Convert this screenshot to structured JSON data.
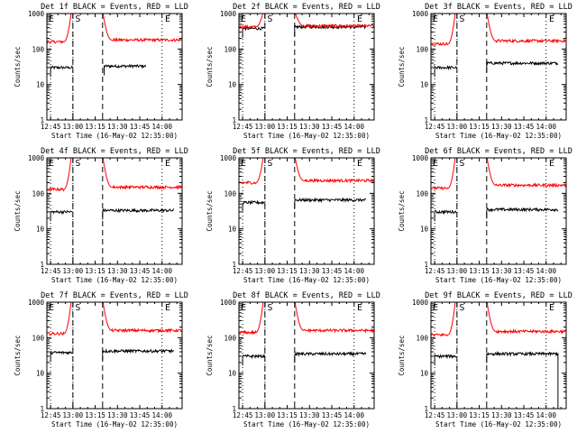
{
  "figure": {
    "xlabel": "Start Time (16-May-02 12:35:00)",
    "ylabel": "Counts/sec",
    "colors": {
      "events": "#000000",
      "lld": "#ff0000",
      "axes": "#000000"
    }
  },
  "chart_data": [
    {
      "type": "line",
      "title": "Det 1f BLACK = Events, RED = LLD",
      "xlabel": "Start Time (16-May-02 12:35:00)",
      "ylabel": "Counts/sec",
      "yscale": "log",
      "ylim": [
        1,
        1000
      ],
      "xlim_minutes": [
        12.5,
        103.5
      ],
      "x_tick_labels": [
        "12:45",
        "13:00",
        "13:15",
        "13:30",
        "13:45",
        "14:00"
      ],
      "y_tick_labels": [
        "1",
        "10",
        "100",
        "1000"
      ],
      "markers": [
        "E",
        "S",
        "E"
      ],
      "series": [
        {
          "name": "Events",
          "color": "#000000",
          "segments": [
            {
              "x_range": [
                15,
                30
              ],
              "level": 30
            },
            {
              "x_range": [
                51,
                79
              ],
              "level": 33
            }
          ]
        },
        {
          "name": "LLD",
          "color": "#ff0000",
          "segments": [
            {
              "x_range": [
                12.5,
                29
              ],
              "level": 160,
              "rise_to": 1200
            },
            {
              "x_range": [
                50,
                103.5
              ],
              "level": 180,
              "peak": 1200
            }
          ]
        }
      ]
    },
    {
      "type": "line",
      "title": "Det 2f BLACK = Events, RED = LLD",
      "xlabel": "Start Time (16-May-02 12:35:00)",
      "ylabel": "Counts/sec",
      "yscale": "log",
      "ylim": [
        1,
        1000
      ],
      "xlim_minutes": [
        12.5,
        103.5
      ],
      "x_tick_labels": [
        "12:45",
        "13:00",
        "13:15",
        "13:30",
        "13:45",
        "14:00"
      ],
      "y_tick_labels": [
        "1",
        "10",
        "100",
        "1000"
      ],
      "markers": [
        "E",
        "S",
        "E"
      ],
      "series": [
        {
          "name": "Events",
          "color": "#000000",
          "segments": [
            {
              "x_range": [
                15,
                30
              ],
              "level": 380
            },
            {
              "x_range": [
                50,
                98
              ],
              "level": 420
            }
          ]
        },
        {
          "name": "LLD",
          "color": "#ff0000",
          "segments": [
            {
              "x_range": [
                12.5,
                29
              ],
              "level": 420,
              "rise_to": 1200
            },
            {
              "x_range": [
                50,
                103.5
              ],
              "level": 450,
              "peak": 1200
            }
          ]
        }
      ]
    },
    {
      "type": "line",
      "title": "Det 3f BLACK = Events, RED = LLD",
      "xlabel": "Start Time (16-May-02 12:35:00)",
      "ylabel": "Counts/sec",
      "yscale": "log",
      "ylim": [
        1,
        1000
      ],
      "xlim_minutes": [
        12.5,
        103.5
      ],
      "x_tick_labels": [
        "12:45",
        "13:00",
        "13:15",
        "13:30",
        "13:45",
        "14:00"
      ],
      "y_tick_labels": [
        "1",
        "10",
        "100",
        "1000"
      ],
      "markers": [
        "E",
        "S",
        "E"
      ],
      "series": [
        {
          "name": "Events",
          "color": "#000000",
          "segments": [
            {
              "x_range": [
                15,
                30
              ],
              "level": 30
            },
            {
              "x_range": [
                50,
                98
              ],
              "level": 40
            }
          ]
        },
        {
          "name": "LLD",
          "color": "#ff0000",
          "segments": [
            {
              "x_range": [
                12.5,
                29
              ],
              "level": 140,
              "rise_to": 1200
            },
            {
              "x_range": [
                50,
                103.5
              ],
              "level": 170,
              "peak": 1200
            }
          ]
        }
      ]
    },
    {
      "type": "line",
      "title": "Det 4f BLACK = Events, RED = LLD",
      "xlabel": "Start Time (16-May-02 12:35:00)",
      "ylabel": "Counts/sec",
      "yscale": "log",
      "ylim": [
        1,
        1000
      ],
      "xlim_minutes": [
        12.5,
        103.5
      ],
      "x_tick_labels": [
        "12:45",
        "13:00",
        "13:15",
        "13:30",
        "13:45",
        "14:00"
      ],
      "y_tick_labels": [
        "1",
        "10",
        "100",
        "1000"
      ],
      "markers": [
        "E",
        "S",
        "E"
      ],
      "series": [
        {
          "name": "Events",
          "color": "#000000",
          "segments": [
            {
              "x_range": [
                15,
                30
              ],
              "level": 30
            },
            {
              "x_range": [
                50,
                98
              ],
              "level": 33
            }
          ]
        },
        {
          "name": "LLD",
          "color": "#ff0000",
          "segments": [
            {
              "x_range": [
                12.5,
                29
              ],
              "level": 130,
              "rise_to": 1200
            },
            {
              "x_range": [
                50,
                103.5
              ],
              "level": 150,
              "peak": 1200
            }
          ]
        }
      ]
    },
    {
      "type": "line",
      "title": "Det 5f BLACK = Events, RED = LLD",
      "xlabel": "Start Time (16-May-02 12:35:00)",
      "ylabel": "Counts/sec",
      "yscale": "log",
      "ylim": [
        1,
        1000
      ],
      "xlim_minutes": [
        12.5,
        103.5
      ],
      "x_tick_labels": [
        "12:45",
        "13:00",
        "13:15",
        "13:30",
        "13:45",
        "14:00"
      ],
      "y_tick_labels": [
        "1",
        "10",
        "100",
        "1000"
      ],
      "markers": [
        "E",
        "S",
        "E"
      ],
      "series": [
        {
          "name": "Events",
          "color": "#000000",
          "segments": [
            {
              "x_range": [
                15,
                30
              ],
              "level": 55
            },
            {
              "x_range": [
                50,
                98
              ],
              "level": 65
            }
          ]
        },
        {
          "name": "LLD",
          "color": "#ff0000",
          "segments": [
            {
              "x_range": [
                12.5,
                29
              ],
              "level": 200,
              "rise_to": 1200
            },
            {
              "x_range": [
                50,
                103.5
              ],
              "level": 230,
              "peak": 1200
            }
          ]
        }
      ]
    },
    {
      "type": "line",
      "title": "Det 6f BLACK = Events, RED = LLD",
      "xlabel": "Start Time (16-May-02 12:35:00)",
      "ylabel": "Counts/sec",
      "yscale": "log",
      "ylim": [
        1,
        1000
      ],
      "xlim_minutes": [
        12.5,
        103.5
      ],
      "x_tick_labels": [
        "12:45",
        "13:00",
        "13:15",
        "13:30",
        "13:45",
        "14:00"
      ],
      "y_tick_labels": [
        "1",
        "10",
        "100",
        "1000"
      ],
      "markers": [
        "E",
        "S",
        "E"
      ],
      "series": [
        {
          "name": "Events",
          "color": "#000000",
          "segments": [
            {
              "x_range": [
                15,
                30
              ],
              "level": 30
            },
            {
              "x_range": [
                50,
                98
              ],
              "level": 35
            }
          ]
        },
        {
          "name": "LLD",
          "color": "#ff0000",
          "segments": [
            {
              "x_range": [
                12.5,
                29
              ],
              "level": 140,
              "rise_to": 1200
            },
            {
              "x_range": [
                50,
                103.5
              ],
              "level": 170,
              "peak": 1200
            }
          ]
        }
      ]
    },
    {
      "type": "line",
      "title": "Det 7f BLACK = Events, RED = LLD",
      "xlabel": "Start Time (16-May-02 12:35:00)",
      "ylabel": "Counts/sec",
      "yscale": "log",
      "ylim": [
        1,
        1000
      ],
      "xlim_minutes": [
        12.5,
        103.5
      ],
      "x_tick_labels": [
        "12:45",
        "13:00",
        "13:15",
        "13:30",
        "13:45",
        "14:00"
      ],
      "y_tick_labels": [
        "1",
        "10",
        "100",
        "1000"
      ],
      "markers": [
        "E",
        "S",
        "E"
      ],
      "series": [
        {
          "name": "Events",
          "color": "#000000",
          "segments": [
            {
              "x_range": [
                15,
                30
              ],
              "level": 38
            },
            {
              "x_range": [
                50,
                98
              ],
              "level": 42
            }
          ]
        },
        {
          "name": "LLD",
          "color": "#ff0000",
          "segments": [
            {
              "x_range": [
                12.5,
                29
              ],
              "level": 130,
              "rise_to": 1200
            },
            {
              "x_range": [
                50,
                103.5
              ],
              "level": 160,
              "peak": 1200
            }
          ]
        }
      ]
    },
    {
      "type": "line",
      "title": "Det 8f BLACK = Events, RED = LLD",
      "xlabel": "Start Time (16-May-02 12:35:00)",
      "ylabel": "Counts/sec",
      "yscale": "log",
      "ylim": [
        1,
        1000
      ],
      "xlim_minutes": [
        12.5,
        103.5
      ],
      "x_tick_labels": [
        "12:45",
        "13:00",
        "13:15",
        "13:30",
        "13:45",
        "14:00"
      ],
      "y_tick_labels": [
        "1",
        "10",
        "100",
        "1000"
      ],
      "markers": [
        "E",
        "S",
        "E"
      ],
      "series": [
        {
          "name": "Events",
          "color": "#000000",
          "segments": [
            {
              "x_range": [
                15,
                30
              ],
              "level": 30
            },
            {
              "x_range": [
                50,
                98
              ],
              "level": 35
            }
          ]
        },
        {
          "name": "LLD",
          "color": "#ff0000",
          "segments": [
            {
              "x_range": [
                12.5,
                29
              ],
              "level": 140,
              "rise_to": 1200
            },
            {
              "x_range": [
                50,
                103.5
              ],
              "level": 160,
              "peak": 1200
            }
          ]
        }
      ]
    },
    {
      "type": "line",
      "title": "Det 9f BLACK = Events, RED = LLD",
      "xlabel": "Start Time (16-May-02 12:35:00)",
      "ylabel": "Counts/sec",
      "yscale": "log",
      "ylim": [
        1,
        1000
      ],
      "xlim_minutes": [
        12.5,
        103.5
      ],
      "x_tick_labels": [
        "12:45",
        "13:00",
        "13:15",
        "13:30",
        "13:45",
        "14:00"
      ],
      "y_tick_labels": [
        "1",
        "10",
        "100",
        "1000"
      ],
      "markers": [
        "E",
        "S",
        "E"
      ],
      "series": [
        {
          "name": "Events",
          "color": "#000000",
          "segments": [
            {
              "x_range": [
                15,
                30
              ],
              "level": 30
            },
            {
              "x_range": [
                50,
                98
              ],
              "level": 35,
              "drop_at": 98
            }
          ]
        },
        {
          "name": "LLD",
          "color": "#ff0000",
          "segments": [
            {
              "x_range": [
                12.5,
                29
              ],
              "level": 120,
              "rise_to": 1200
            },
            {
              "x_range": [
                50,
                103.5
              ],
              "level": 150,
              "peak": 1200
            }
          ]
        }
      ]
    }
  ]
}
